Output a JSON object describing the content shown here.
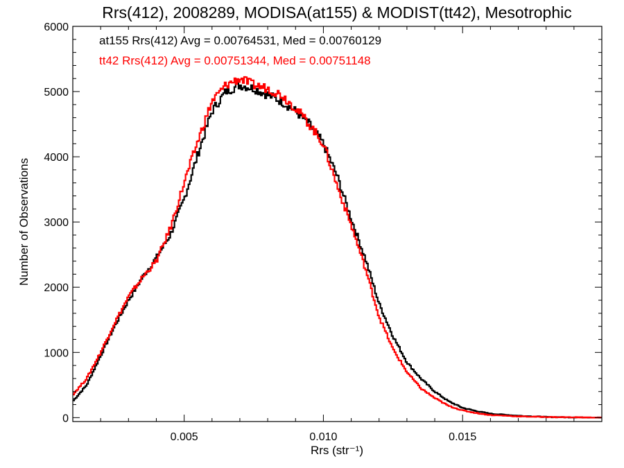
{
  "chart_data": {
    "type": "line",
    "title": "Rrs(412), 2008289, MODISA(at155) & MODIST(tt42), Mesotrophic",
    "xlabel": "Rrs (str⁻¹)",
    "ylabel": "Number of Observations",
    "xlim": [
      0.001,
      0.02
    ],
    "ylim": [
      -60,
      6000
    ],
    "x_ticks": [
      {
        "value": 0.005,
        "label": "0.005"
      },
      {
        "value": 0.01,
        "label": "0.010"
      },
      {
        "value": 0.015,
        "label": "0.015"
      }
    ],
    "y_ticks": [
      {
        "value": 0,
        "label": "0"
      },
      {
        "value": 1000,
        "label": "1000"
      },
      {
        "value": 2000,
        "label": "2000"
      },
      {
        "value": 3000,
        "label": "3000"
      },
      {
        "value": 4000,
        "label": "4000"
      },
      {
        "value": 5000,
        "label": "5000"
      },
      {
        "value": 6000,
        "label": "6000"
      }
    ],
    "grid": false,
    "legend_placement": "top-left",
    "step_style": "histogram",
    "series": [
      {
        "name": "at155",
        "color": "#000000",
        "legend": "at155 Rrs(412) Avg = 0.00764531, Med = 0.00760129",
        "x": [
          0.001,
          0.0015,
          0.002,
          0.0025,
          0.003,
          0.0035,
          0.004,
          0.0045,
          0.005,
          0.0055,
          0.006,
          0.0065,
          0.007,
          0.0075,
          0.008,
          0.0085,
          0.009,
          0.0095,
          0.01,
          0.0105,
          0.011,
          0.0115,
          0.012,
          0.0125,
          0.013,
          0.0135,
          0.014,
          0.0145,
          0.015,
          0.0155,
          0.016,
          0.017,
          0.018,
          0.019,
          0.02
        ],
        "y": [
          250,
          500,
          950,
          1400,
          1800,
          2150,
          2450,
          2800,
          3350,
          4050,
          4700,
          5000,
          5100,
          5050,
          4950,
          4850,
          4700,
          4500,
          4200,
          3700,
          3050,
          2450,
          1750,
          1250,
          850,
          600,
          400,
          250,
          150,
          100,
          60,
          30,
          10,
          5,
          0
        ]
      },
      {
        "name": "tt42",
        "color": "#ff0000",
        "legend": "tt42 Rrs(412) Avg = 0.00751344, Med = 0.00751148",
        "x": [
          0.001,
          0.0015,
          0.002,
          0.0025,
          0.003,
          0.0035,
          0.004,
          0.0045,
          0.005,
          0.0055,
          0.006,
          0.0065,
          0.007,
          0.0075,
          0.008,
          0.0085,
          0.009,
          0.0095,
          0.01,
          0.0105,
          0.011,
          0.0115,
          0.012,
          0.0125,
          0.013,
          0.0135,
          0.014,
          0.0145,
          0.015,
          0.0155,
          0.016,
          0.017,
          0.018,
          0.019,
          0.02
        ],
        "y": [
          350,
          600,
          1000,
          1450,
          1850,
          2150,
          2400,
          2900,
          3600,
          4250,
          4850,
          5100,
          5200,
          5100,
          5050,
          4950,
          4750,
          4500,
          4200,
          3550,
          2950,
          2300,
          1550,
          1050,
          700,
          450,
          300,
          180,
          110,
          70,
          40,
          20,
          10,
          5,
          0
        ]
      }
    ]
  }
}
